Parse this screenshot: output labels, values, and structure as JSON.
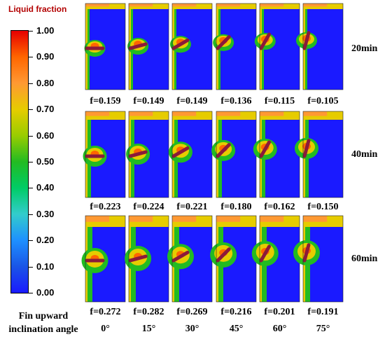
{
  "chart_data": {
    "type": "heatmap",
    "title": "",
    "colorbar": {
      "title": "Liquid fraction",
      "min": 0.0,
      "max": 1.0,
      "tick_labels": [
        "1.00",
        "0.90",
        "0.80",
        "0.70",
        "0.60",
        "0.50",
        "0.40",
        "0.30",
        "0.20",
        "0.10",
        "0.00"
      ],
      "colors": [
        "#e60000",
        "#ff6600",
        "#ff9933",
        "#e6cc00",
        "#99cc00",
        "#22bb22",
        "#00cc66",
        "#33cccc",
        "#1e90ff",
        "#1a55e6",
        "#1a1aff"
      ]
    },
    "row_labels": [
      "20min",
      "40min",
      "60min"
    ],
    "column_axis_label": [
      "Fin upward",
      "inclination angle"
    ],
    "column_labels": [
      "0°",
      "15°",
      "30°",
      "45°",
      "60°",
      "75°"
    ],
    "angles_deg": [
      0,
      15,
      30,
      45,
      60,
      75
    ],
    "liquid_fraction_labels": [
      [
        "f=0.159",
        "f=0.149",
        "f=0.149",
        "f=0.136",
        "f=0.115",
        "f=0.105"
      ],
      [
        "f=0.223",
        "f=0.224",
        "f=0.221",
        "f=0.180",
        "f=0.162",
        "f=0.150"
      ],
      [
        "f=0.272",
        "f=0.282",
        "f=0.269",
        "f=0.216",
        "f=0.201",
        "f=0.191"
      ]
    ],
    "liquid_fraction_values": [
      [
        0.159,
        0.149,
        0.149,
        0.136,
        0.115,
        0.105
      ],
      [
        0.223,
        0.224,
        0.221,
        0.18,
        0.162,
        0.15
      ],
      [
        0.272,
        0.282,
        0.269,
        0.216,
        0.201,
        0.191
      ]
    ]
  }
}
